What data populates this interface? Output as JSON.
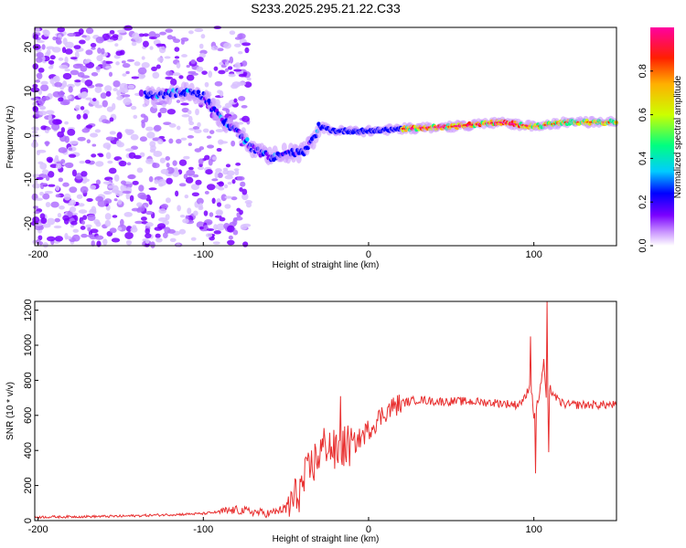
{
  "title": "S233.2025.295.21.22.C33",
  "colors": {
    "snr_line": "#e83030",
    "frame": "#000000"
  },
  "chart_data": [
    {
      "type": "heatmap",
      "name": "spectrogram",
      "xlabel": "Height of straight line (km)",
      "ylabel": "Frequency (Hz)",
      "xlim": [
        -202,
        150
      ],
      "ylim": [
        -25,
        24.5
      ],
      "xticks": [
        -200,
        -100,
        0,
        100
      ],
      "xtick_labels": [
        "-200",
        "-100",
        "0",
        "100"
      ],
      "yticks": [
        -20,
        -10,
        0,
        10,
        20
      ],
      "ytick_labels": [
        "-20",
        "-10",
        "0",
        "10",
        "20"
      ],
      "colorbar": {
        "label": "Normalized spectral amplitude",
        "range": [
          0,
          1
        ],
        "ticks": [
          0.0,
          0.2,
          0.4,
          0.6,
          0.8
        ],
        "tick_labels": [
          "0.0",
          "0.2",
          "0.4",
          "0.6",
          "0.8"
        ],
        "colormap": [
          "#ffffff",
          "#cc99ff",
          "#7a00ff",
          "#0000ff",
          "#00ccff",
          "#00ff80",
          "#ccff00",
          "#ffb000",
          "#ff2000",
          "#ff00a0"
        ]
      },
      "dominant_ridge": {
        "x": [
          -130,
          -110,
          -100,
          -90,
          -80,
          -70,
          -60,
          -50,
          -40,
          -35,
          -30,
          -20,
          0,
          20,
          50,
          80,
          100,
          120,
          150
        ],
        "y": [
          9,
          10,
          9,
          4,
          1,
          -3,
          -5,
          -4,
          -4,
          -2,
          2,
          1,
          1,
          1.5,
          2,
          3,
          2,
          3,
          3
        ]
      }
    },
    {
      "type": "line",
      "name": "snr",
      "xlabel": "Height of straight line (km)",
      "ylabel": "SNR (10 * v/v)",
      "xlim": [
        -202,
        150
      ],
      "ylim": [
        0,
        1250
      ],
      "xticks": [
        -200,
        -100,
        0,
        100
      ],
      "xtick_labels": [
        "-200",
        "-100",
        "0",
        "100"
      ],
      "yticks": [
        0,
        200,
        400,
        600,
        800,
        1000,
        1200
      ],
      "ytick_labels": [
        "0",
        "200",
        "400",
        "600",
        "800",
        "1000",
        "1200"
      ],
      "envelope": {
        "x": [
          -202,
          -150,
          -100,
          -80,
          -60,
          -50,
          -45,
          -40,
          -35,
          -30,
          -25,
          -20,
          -15,
          -10,
          -5,
          0,
          5,
          10,
          15,
          20,
          25,
          30,
          40,
          60,
          80,
          90,
          95,
          98,
          100,
          103,
          106,
          108,
          110,
          115,
          120,
          150
        ],
        "y": [
          20,
          25,
          40,
          60,
          40,
          70,
          120,
          200,
          300,
          380,
          450,
          380,
          420,
          430,
          470,
          520,
          570,
          620,
          650,
          670,
          680,
          690,
          680,
          680,
          670,
          660,
          700,
          800,
          600,
          700,
          900,
          650,
          750,
          680,
          660,
          660
        ]
      },
      "peaks": [
        {
          "x": -17,
          "y": 710
        },
        {
          "x": 98,
          "y": 1050
        },
        {
          "x": 101,
          "y": 270
        },
        {
          "x": 108,
          "y": 1250
        },
        {
          "x": 109,
          "y": 390
        }
      ]
    }
  ]
}
